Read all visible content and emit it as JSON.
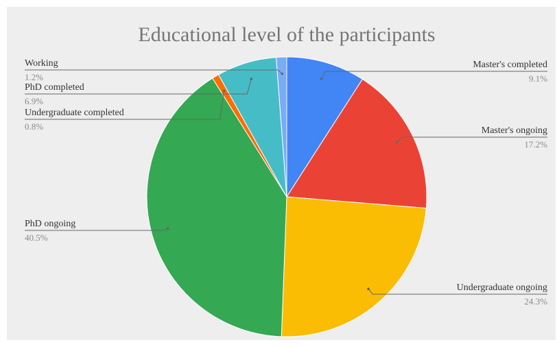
{
  "chart_data": {
    "type": "pie",
    "title": "Educational level of the participants",
    "slices": [
      {
        "label": "Master's completed",
        "percent_label": "9.1%",
        "value": 9.1,
        "color": "#4285f4"
      },
      {
        "label": "Master's ongoing",
        "percent_label": "17.2%",
        "value": 17.2,
        "color": "#ea4335"
      },
      {
        "label": "Undergraduate ongoing",
        "percent_label": "24.3%",
        "value": 24.3,
        "color": "#fbbc04"
      },
      {
        "label": "PhD ongoing",
        "percent_label": "40.5%",
        "value": 40.5,
        "color": "#34a853"
      },
      {
        "label": "Undergraduate completed",
        "percent_label": "0.8%",
        "value": 0.8,
        "color": "#ff6d01"
      },
      {
        "label": "PhD completed",
        "percent_label": "6.9%",
        "value": 6.9,
        "color": "#46bdc6"
      },
      {
        "label": "Working",
        "percent_label": "1.2%",
        "value": 1.2,
        "color": "#7baaf7"
      }
    ],
    "start_angle_deg": 0,
    "direction": "clockwise"
  }
}
